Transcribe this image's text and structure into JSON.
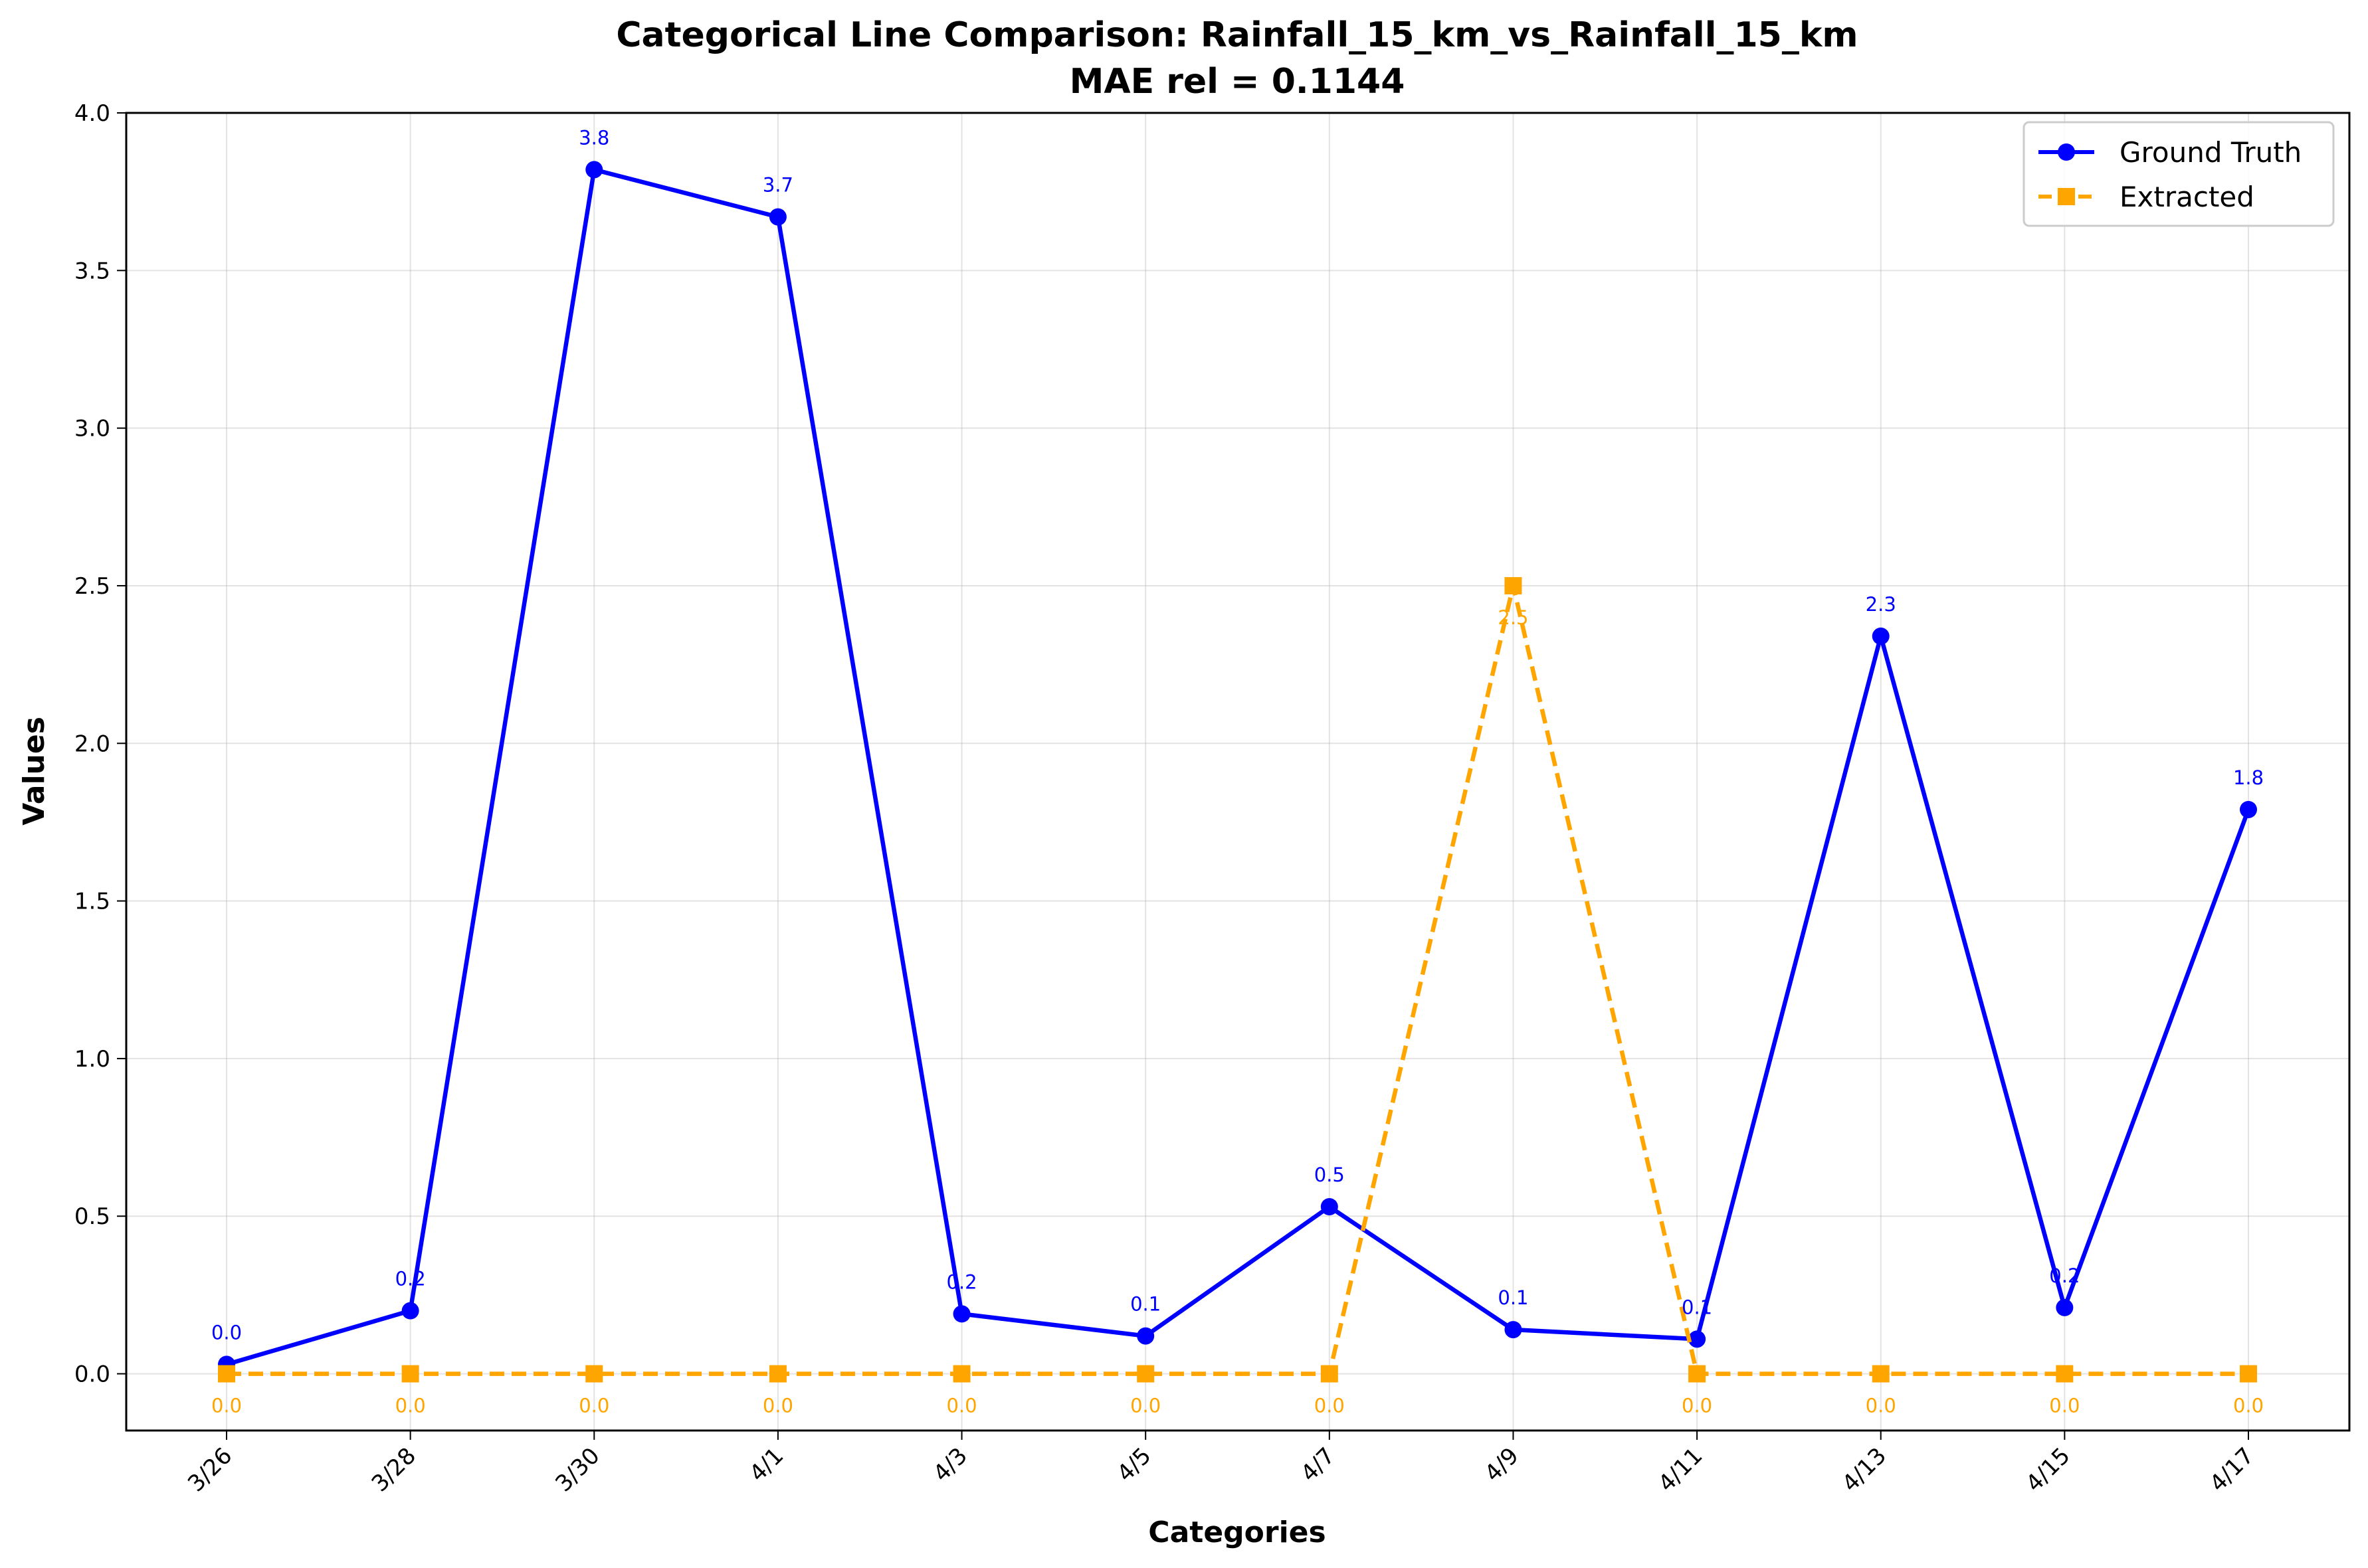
{
  "chart_data": {
    "type": "line",
    "title": "Categorical Line Comparison: Rainfall_15_km_vs_Rainfall_15_km",
    "subtitle": "MAE rel = 0.1144",
    "xlabel": "Categories",
    "ylabel": "Values",
    "categories": [
      "3/26",
      "3/28",
      "3/30",
      "4/1",
      "4/3",
      "4/5",
      "4/7",
      "4/9",
      "4/11",
      "4/13",
      "4/15",
      "4/17"
    ],
    "ylim": [
      -0.18,
      4.0
    ],
    "yticks": [
      0.0,
      0.5,
      1.0,
      1.5,
      2.0,
      2.5,
      3.0,
      3.5,
      4.0
    ],
    "ytick_labels": [
      "0.0",
      "0.5",
      "1.0",
      "1.5",
      "2.0",
      "2.5",
      "3.0",
      "3.5",
      "4.0"
    ],
    "grid": true,
    "legend_position": "top-right",
    "series": [
      {
        "name": "Ground Truth",
        "color": "#0000ff",
        "marker": "circle",
        "line_style": "solid",
        "values": [
          0.03,
          0.2,
          3.82,
          3.67,
          0.19,
          0.12,
          0.53,
          0.14,
          0.11,
          2.34,
          0.21,
          1.79
        ],
        "labels": [
          "0.0",
          "0.2",
          "3.8",
          "3.7",
          "0.2",
          "0.1",
          "0.5",
          "0.1",
          "0.1",
          "2.3",
          "0.2",
          "1.8"
        ]
      },
      {
        "name": "Extracted",
        "color": "#ffa500",
        "marker": "square",
        "line_style": "dashed",
        "values": [
          0.0,
          0.0,
          0.0,
          0.0,
          0.0,
          0.0,
          0.0,
          2.5,
          0.0,
          0.0,
          0.0,
          0.0
        ],
        "labels": [
          "0.0",
          "0.0",
          "0.0",
          "0.0",
          "0.0",
          "0.0",
          "0.0",
          "2.5",
          "0.0",
          "0.0",
          "0.0",
          "0.0"
        ]
      }
    ]
  }
}
